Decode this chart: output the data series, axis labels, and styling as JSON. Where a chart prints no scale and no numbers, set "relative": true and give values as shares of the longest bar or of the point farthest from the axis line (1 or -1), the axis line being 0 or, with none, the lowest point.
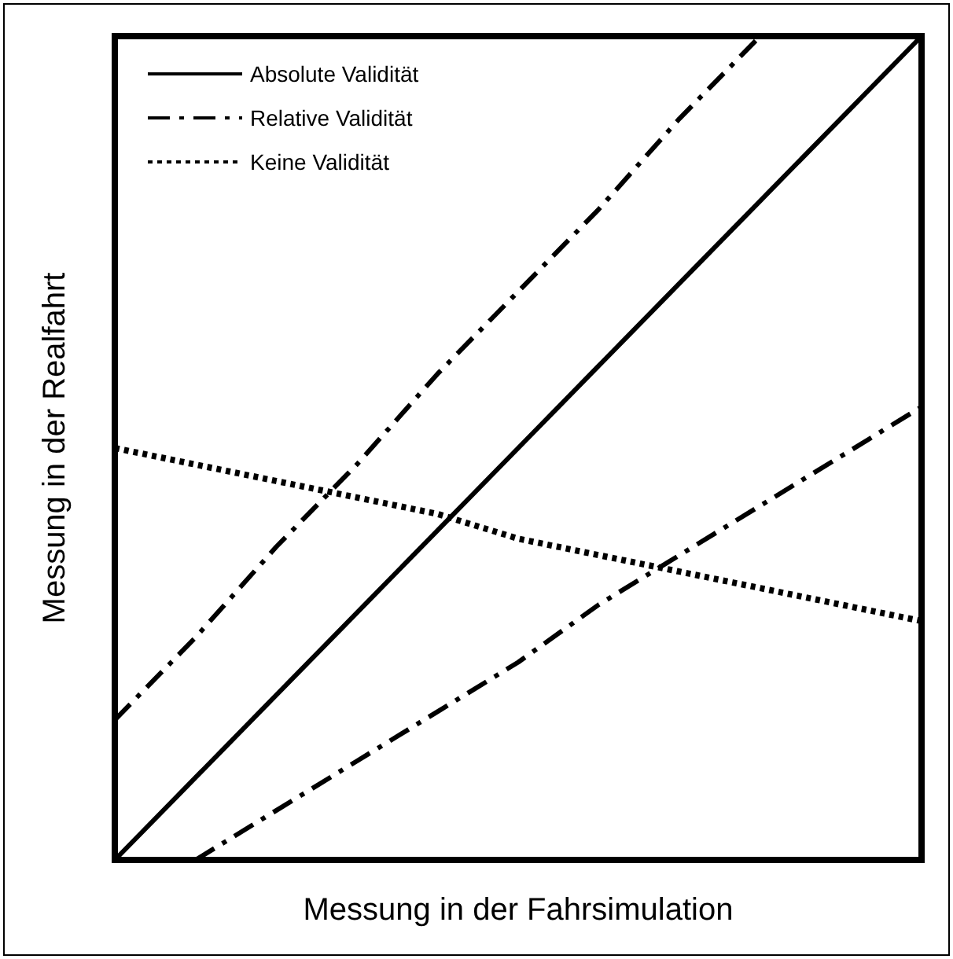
{
  "chart_data": {
    "type": "line",
    "relative": true,
    "xlabel": "Messung in der Fahrsimulation",
    "ylabel": "Messung in der Realfahrt",
    "categories": [
      null,
      null,
      null,
      null,
      null,
      null,
      null,
      null,
      null,
      null,
      null
    ],
    "series": [
      {
        "name": "Absolute Validität",
        "color": "#000000",
        "line_style": "solid",
        "values": [
          0,
          0.1,
          0.2,
          0.3,
          0.4,
          0.5,
          0.6,
          0.7,
          0.8,
          0.9,
          1
        ]
      },
      {
        "name": "Relative Validität",
        "color": "#000000",
        "line_style": "dashdot",
        "values": [
          0.17,
          0.27,
          0.38,
          0.48,
          0.59,
          0.69,
          0.79,
          0.9,
          1,
          null,
          null
        ]
      },
      {
        "color": "#000000",
        "line_style": "dashdot",
        "values": [
          null,
          0,
          0.06,
          0.12,
          0.18,
          0.24,
          0.31,
          0.37,
          0.43,
          0.49,
          0.55
        ]
      },
      {
        "name": "Keine Validität",
        "color": "#000000",
        "line_style": "dotted",
        "values": [
          0.5,
          0.48,
          0.46,
          0.44,
          0.42,
          0.39,
          0.37,
          0.35,
          0.33,
          0.31,
          0.29
        ]
      }
    ],
    "legend": "top left",
    "grid": false,
    "marker": "none"
  }
}
